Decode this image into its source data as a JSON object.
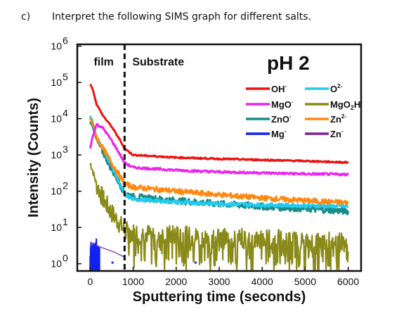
{
  "question": {
    "label": "c)",
    "text": "Interpret the following SIMS graph for different salts."
  },
  "chart_data": {
    "type": "line",
    "title": "",
    "xlabel": "Sputtering time (seconds)",
    "ylabel": "Intensity (Counts)",
    "xlim": [
      -300,
      6300
    ],
    "ylim_log10": [
      -0.2,
      6.05
    ],
    "y_scale": "log",
    "x_ticks": [
      0,
      1000,
      2000,
      3000,
      4000,
      5000,
      6000
    ],
    "y_ticks": [
      {
        "value": 1,
        "label": "10",
        "exp": "0"
      },
      {
        "value": 10,
        "label": "10",
        "exp": "1"
      },
      {
        "value": 100,
        "label": "10",
        "exp": "2"
      },
      {
        "value": 1000,
        "label": "10",
        "exp": "3"
      },
      {
        "value": 10000,
        "label": "10",
        "exp": "4"
      },
      {
        "value": 100000,
        "label": "10",
        "exp": "5"
      },
      {
        "value": 1000000,
        "label": "10",
        "exp": "6"
      }
    ],
    "grid": false,
    "legend_position": "top-right",
    "annotations": {
      "film": "film",
      "substrate": "Substrate",
      "ph": "pH 2",
      "interface_x": 800
    },
    "series": [
      {
        "name": "OH",
        "sup": "-",
        "color": "#ee1111",
        "x": [
          0,
          50,
          150,
          300,
          500,
          700,
          800,
          1000,
          2000,
          3000,
          4000,
          5000,
          6000
        ],
        "y": [
          90000,
          70000,
          25000,
          12000,
          6000,
          2500,
          1500,
          1000,
          850,
          780,
          730,
          680,
          620
        ]
      },
      {
        "name": "O",
        "sup": "2-",
        "color": "#22ccee",
        "x": [
          0,
          50,
          150,
          300,
          500,
          700,
          800,
          1000,
          2000,
          3000,
          4000,
          5000,
          6000
        ],
        "y": [
          12000,
          9000,
          3000,
          1500,
          500,
          150,
          80,
          60,
          50,
          45,
          42,
          40,
          38
        ]
      },
      {
        "name": "MgO",
        "sup": "-",
        "color": "#ee22ee",
        "x": [
          0,
          50,
          150,
          300,
          500,
          700,
          800,
          1000,
          2000,
          3000,
          4000,
          5000,
          6000
        ],
        "y": [
          1500,
          3000,
          7000,
          5500,
          2500,
          1000,
          600,
          450,
          380,
          340,
          320,
          300,
          290
        ]
      },
      {
        "name": "MgO",
        "sub": "2",
        "name2": "H",
        "sup": "-",
        "color": "#8a8a1a",
        "x": [
          0,
          50,
          150,
          300,
          500,
          700,
          800,
          1000,
          2000,
          3000,
          4000,
          5000,
          6000
        ],
        "y": [
          600,
          400,
          150,
          60,
          25,
          12,
          8,
          7,
          6,
          5,
          5,
          4,
          4
        ]
      },
      {
        "name": "ZnO",
        "sup": "-",
        "color": "#1a8a8a",
        "x": [
          0,
          50,
          150,
          300,
          500,
          700,
          800,
          1000,
          2000,
          3000,
          4000,
          5000,
          6000
        ],
        "y": [
          8000,
          7000,
          2500,
          1200,
          400,
          150,
          90,
          70,
          55,
          45,
          38,
          33,
          28
        ]
      },
      {
        "name": "Zn",
        "sup": "2-",
        "color": "#ff8811",
        "x": [
          0,
          50,
          150,
          300,
          500,
          700,
          800,
          1000,
          2000,
          3000,
          4000,
          5000,
          6000
        ],
        "y": [
          10000,
          8000,
          3000,
          1500,
          600,
          250,
          160,
          130,
          100,
          80,
          65,
          55,
          48
        ]
      },
      {
        "name": "Mg",
        "sup": "-",
        "color": "#1122ee",
        "x": [
          0,
          50,
          100,
          150,
          200,
          250,
          400,
          600
        ],
        "y": [
          1.8,
          3,
          2,
          2.5,
          1.5,
          2.2,
          1.3,
          1.2
        ]
      },
      {
        "name": "Zn",
        "sup": "-",
        "color": "#772299",
        "x": [
          0,
          200,
          600,
          800
        ],
        "y": [
          4,
          3,
          2,
          1.5
        ]
      }
    ]
  }
}
